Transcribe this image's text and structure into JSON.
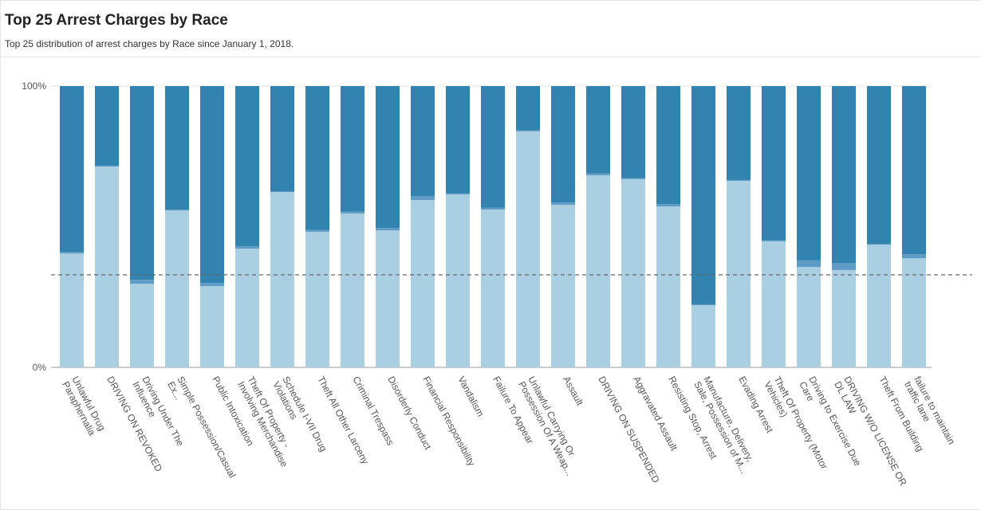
{
  "chart_data": {
    "type": "stacked_bar_100",
    "title": "Top 25 Arrest Charges by Race",
    "subtitle": "Top 25 distribution of arrest charges by Race since January 1, 2018.",
    "categories": [
      "Unlawful Drug Paraphernalia",
      "DRIVING ON REVOKED",
      "Driving Under The Influence",
      "Simple Possession/Casual Ex...",
      "Public Intoxication",
      "Theft Of Property - Involving Merchandise",
      "Schedule I-VII Drug Violations",
      "Theft All Other Larceny",
      "Criminal Trespass",
      "Disorderly Conduct",
      "Financial Responsibility",
      "Vandalism",
      "Failure To Appear",
      "Unlawful Carrying Or Possession Of A Weap...",
      "Assault",
      "DRIVING ON SUSPENDED",
      "Aggravated Assault",
      "Resisting Stop, Arrest",
      "Manufacture, Delivery, Sale, Possession of M...",
      "Evading Arrest",
      "Theft Of Property (Motor Vehicles)",
      "Driving to Exercise Due Care",
      "DRIVING W/O LICENSE OR DL LAW",
      "Theft From Building",
      "failure to maintain traffic lane"
    ],
    "series": [
      {
        "color": "#abcfe2",
        "values": [
          40.5,
          71.4,
          29.7,
          55.8,
          28.9,
          42.2,
          62.3,
          48.2,
          54.7,
          48.7,
          59.5,
          61.5,
          56.1,
          83.9,
          57.8,
          68.3,
          66.9,
          57.2,
          22.1,
          66.3,
          44.8,
          35.7,
          34.6,
          43.6,
          38.8
        ]
      },
      {
        "color": "#5e9cc7",
        "values": [
          0.5,
          0.3,
          1.4,
          0.3,
          1.1,
          0.8,
          0.3,
          0.6,
          0.6,
          0.8,
          1.4,
          0.3,
          0.6,
          0.3,
          0.8,
          0.6,
          0.3,
          0.8,
          0.3,
          0.3,
          0.3,
          2.3,
          2.5,
          0.3,
          1.4
        ]
      },
      {
        "color": "#3383b0",
        "values": [
          59.0,
          28.3,
          68.9,
          43.9,
          70.0,
          57.0,
          37.4,
          51.2,
          44.7,
          50.5,
          39.1,
          38.2,
          43.3,
          15.8,
          41.4,
          31.1,
          32.8,
          42.0,
          77.6,
          33.4,
          54.9,
          62.0,
          62.9,
          56.1,
          59.8
        ]
      }
    ],
    "ylim": [
      0,
      100
    ],
    "yticks": [
      {
        "value": 0,
        "label": "0%"
      },
      {
        "value": 100,
        "label": "100%"
      }
    ],
    "reference_line": 32.9,
    "grid": true
  }
}
